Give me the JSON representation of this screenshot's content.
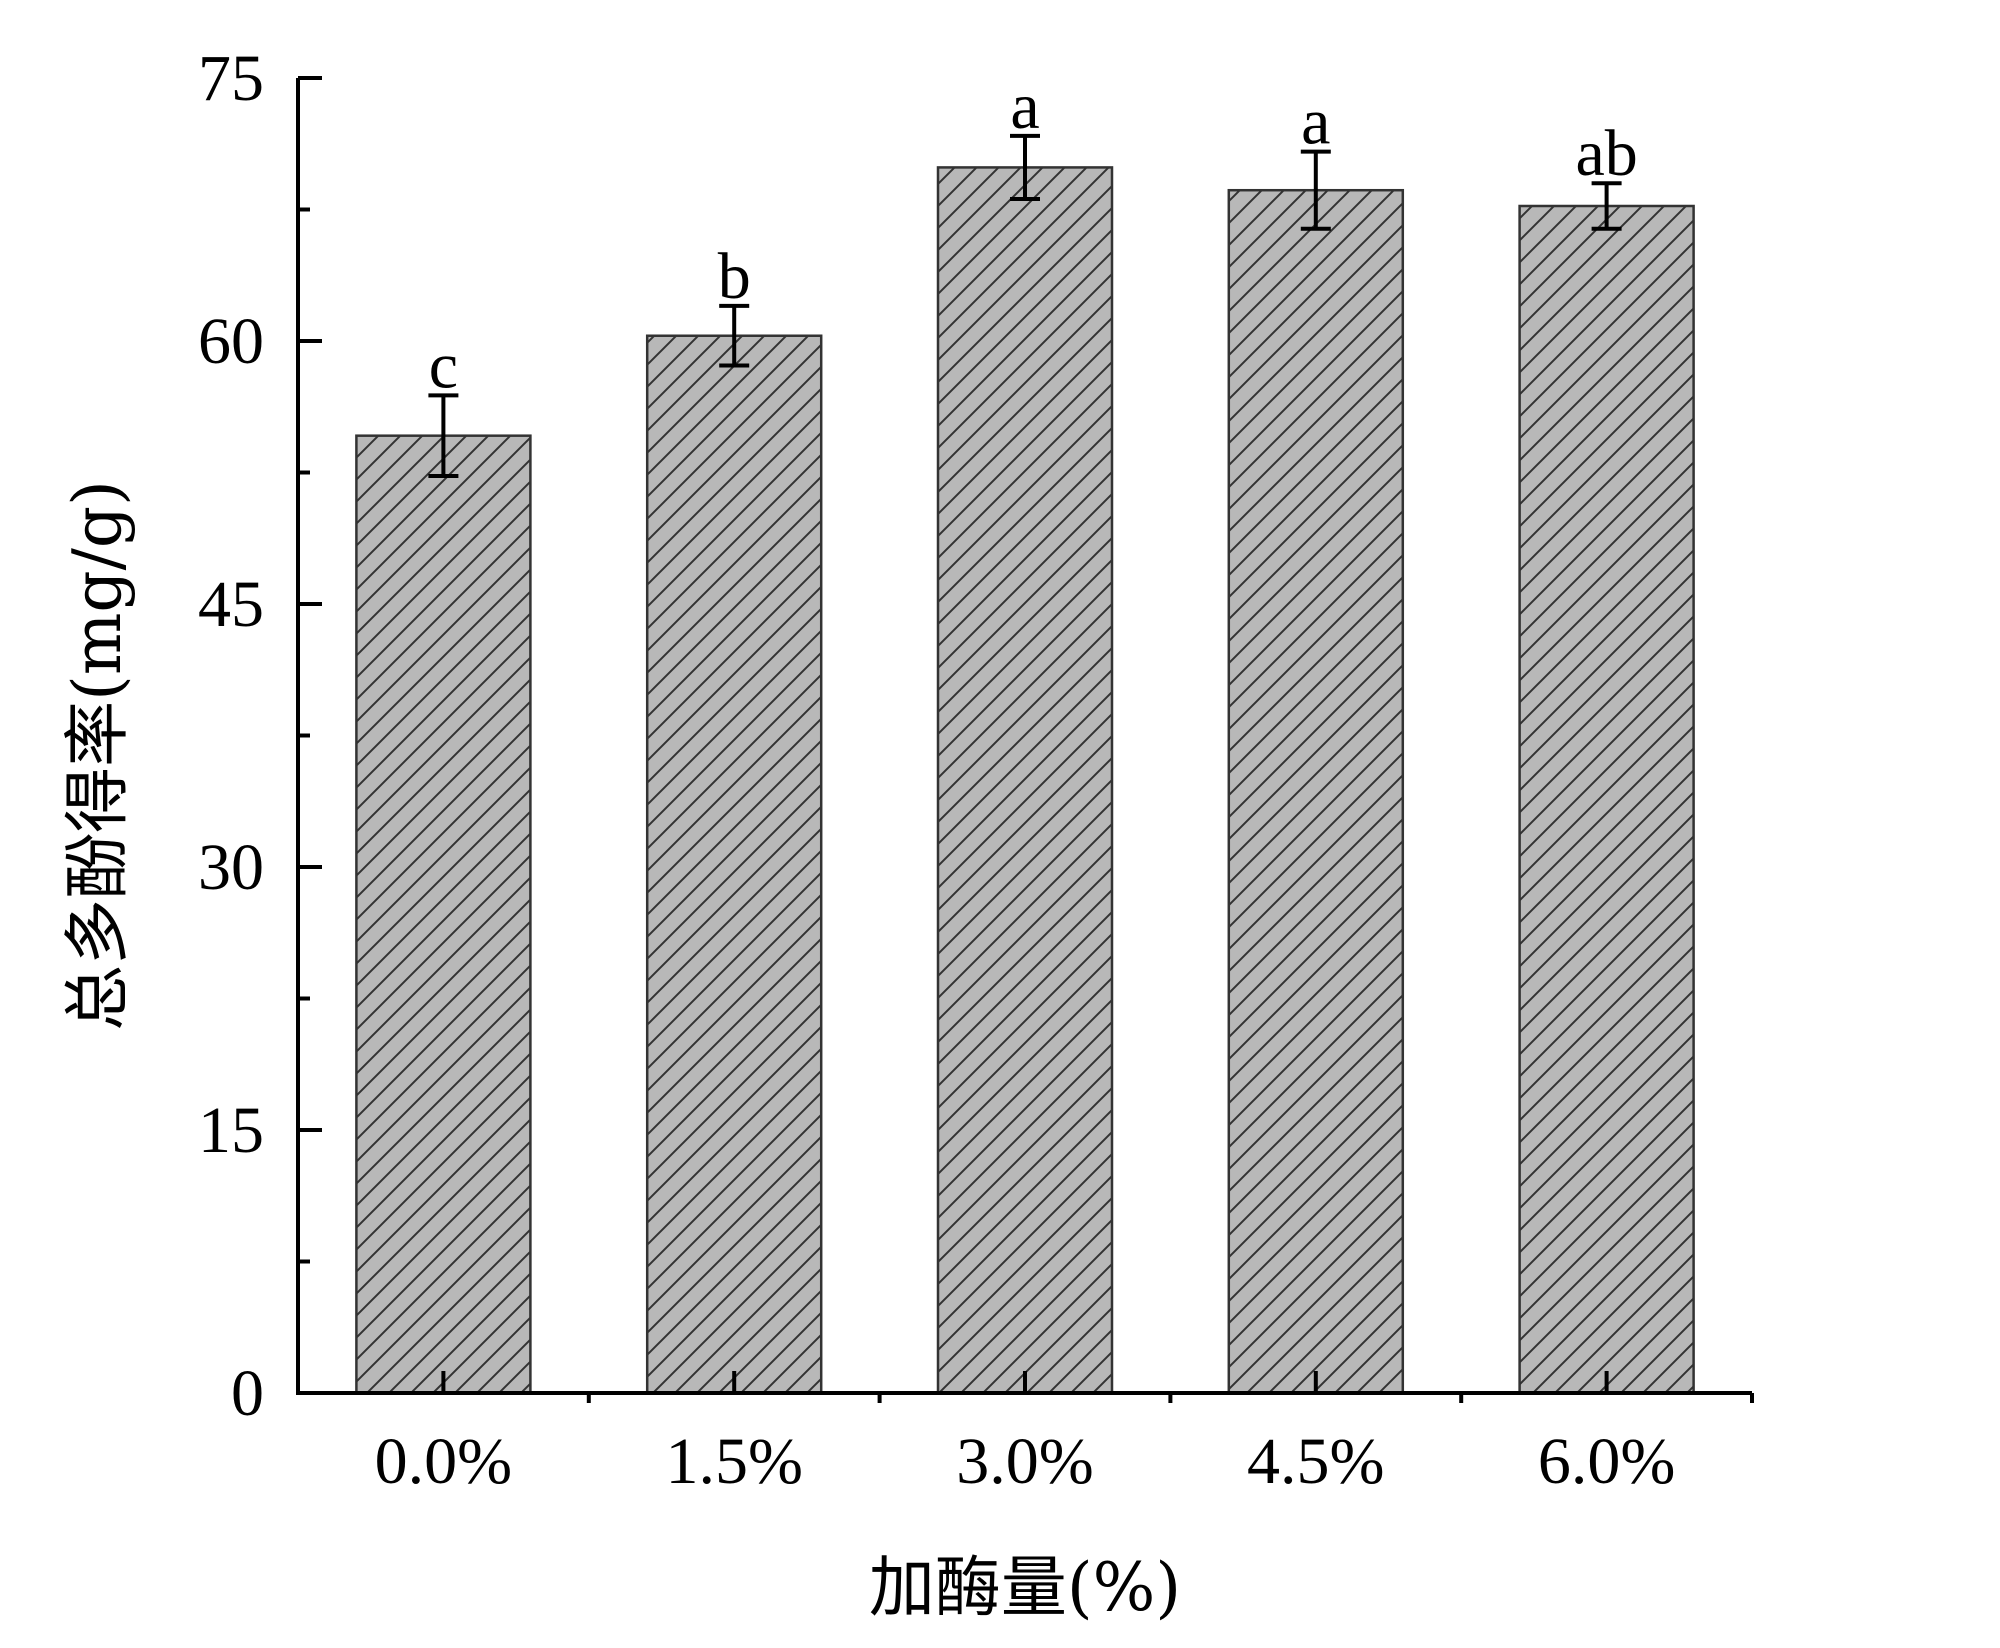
{
  "chart_data": {
    "type": "bar",
    "categories": [
      "0.0%",
      "1.5%",
      "3.0%",
      "4.5%",
      "6.0%"
    ],
    "series": [
      {
        "values": [
          54.6,
          60.3,
          69.9,
          68.6,
          67.7
        ],
        "errors": [
          2.3,
          1.7,
          1.8,
          2.2,
          1.3
        ],
        "significance": [
          "c",
          "b",
          "a",
          "a",
          "ab"
        ]
      }
    ],
    "title": "",
    "xlabel": "加酶量(%)",
    "ylabel": "总多酚得率(mg/g)",
    "ylim": [
      0,
      75
    ],
    "yticks": [
      0,
      15,
      30,
      45,
      60,
      75
    ],
    "ytick_labels": [
      "0",
      "15",
      "30",
      "45",
      "60",
      "75"
    ],
    "grid": false,
    "legend": "none",
    "bar_fill": "#b8b8b8",
    "hatch": "diagonal",
    "hatch_color": "#333333",
    "edge_color": "#333333",
    "axis_color": "#000000"
  }
}
